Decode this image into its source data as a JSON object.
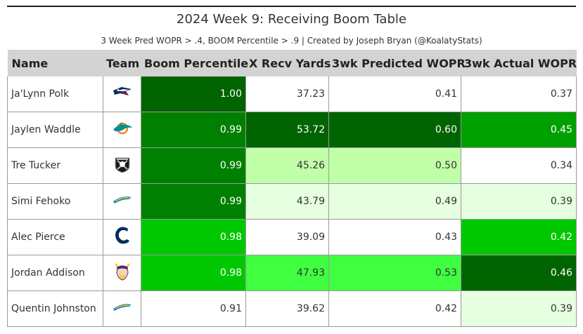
{
  "title": "2024 Week 9: Receiving Boom Table",
  "subtitle": "3 Week Pred WOPR > .4, BOOM Percentile > .9 | Created by Joseph Bryan (@KoalatyStats)",
  "headers": {
    "name": "Name",
    "team": "Team",
    "boom": "Boom Percentile",
    "xrecv": "X Recv Yards",
    "pred": "3wk Predicted WOPR",
    "actual": "3wk Actual WOPR"
  },
  "colors": {
    "header_bg": "#d3d3d3",
    "darkest_green": "#006400",
    "dark_green": "#008000",
    "bright_green": "#00c800",
    "mid_green": "#40ff40",
    "light_green": "#c0ffa8",
    "pale_green": "#e6ffe0",
    "white": "#ffffff"
  },
  "rows": [
    {
      "name": "Ja'Lynn Polk",
      "team_icon": "patriots-logo-icon",
      "boom": "1.00",
      "xrecv": "37.23",
      "pred": "0.41",
      "actual": "0.37"
    },
    {
      "name": "Jaylen Waddle",
      "team_icon": "dolphins-logo-icon",
      "boom": "0.99",
      "xrecv": "53.72",
      "pred": "0.60",
      "actual": "0.45"
    },
    {
      "name": "Tre Tucker",
      "team_icon": "raiders-logo-icon",
      "boom": "0.99",
      "xrecv": "45.26",
      "pred": "0.50",
      "actual": "0.34"
    },
    {
      "name": "Simi Fehoko",
      "team_icon": "chargers-logo-icon",
      "boom": "0.99",
      "xrecv": "43.79",
      "pred": "0.49",
      "actual": "0.39"
    },
    {
      "name": "Alec Pierce",
      "team_icon": "colts-logo-icon",
      "boom": "0.98",
      "xrecv": "39.09",
      "pred": "0.43",
      "actual": "0.42"
    },
    {
      "name": "Jordan Addison",
      "team_icon": "vikings-logo-icon",
      "boom": "0.98",
      "xrecv": "47.93",
      "pred": "0.53",
      "actual": "0.46"
    },
    {
      "name": "Quentin Johnston",
      "team_icon": "chargers-logo-icon",
      "boom": "0.91",
      "xrecv": "39.62",
      "pred": "0.42",
      "actual": "0.39"
    }
  ]
}
